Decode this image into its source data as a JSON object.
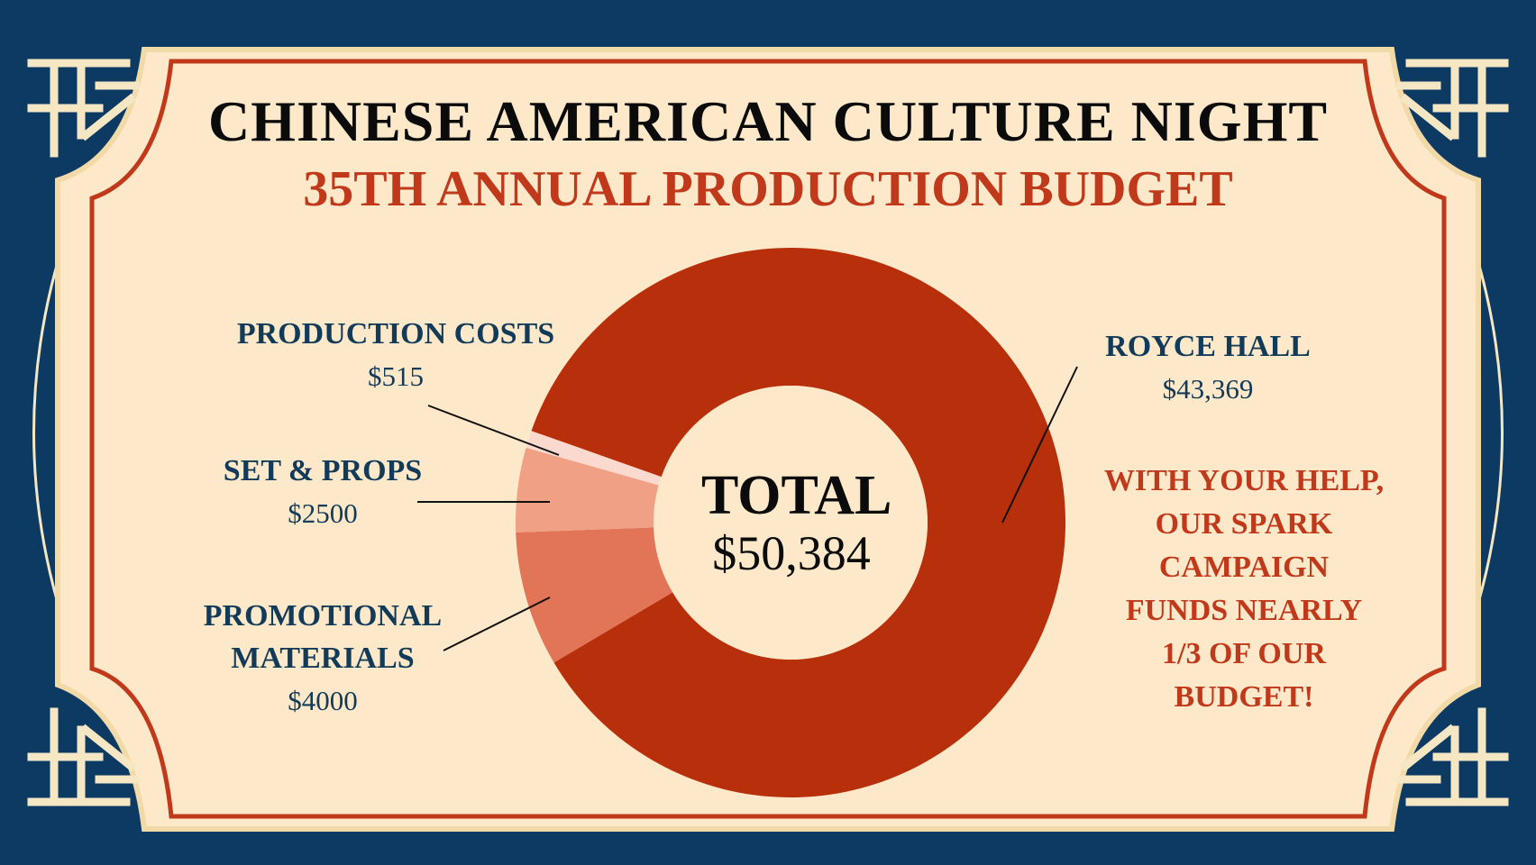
{
  "title": "CHINESE AMERICAN CULTURE NIGHT",
  "subtitle": "35TH ANNUAL PRODUCTION BUDGET",
  "center": {
    "label": "TOTAL",
    "value": "$50,384"
  },
  "note_lines": [
    "WITH YOUR HELP,",
    "OUR SPARK",
    "CAMPAIGN",
    "FUNDS NEARLY",
    "1/3 OF OUR",
    "BUDGET!"
  ],
  "colors": {
    "background": "#0d3a63",
    "panel": "#fde9c9",
    "accent_red": "#c0391b",
    "slice_royce": "#b82f0b",
    "slice_promo": "#e27457",
    "slice_set": "#f0a185",
    "slice_production": "#fbd9cf",
    "ornament": "#f5e6c4"
  },
  "chart_data": {
    "type": "pie",
    "donut": true,
    "title": "35TH ANNUAL PRODUCTION BUDGET",
    "total": 50384,
    "slices": [
      {
        "name": "ROYCE HALL",
        "value_label": "$43,369",
        "value": 43369
      },
      {
        "name": "PROMOTIONAL MATERIALS",
        "name_lines": [
          "PROMOTIONAL",
          "MATERIALS"
        ],
        "value_label": "$4000",
        "value": 4000
      },
      {
        "name": "SET & PROPS",
        "value_label": "$2500",
        "value": 2500
      },
      {
        "name": "PRODUCTION COSTS",
        "value_label": "$515",
        "value": 515
      }
    ]
  }
}
